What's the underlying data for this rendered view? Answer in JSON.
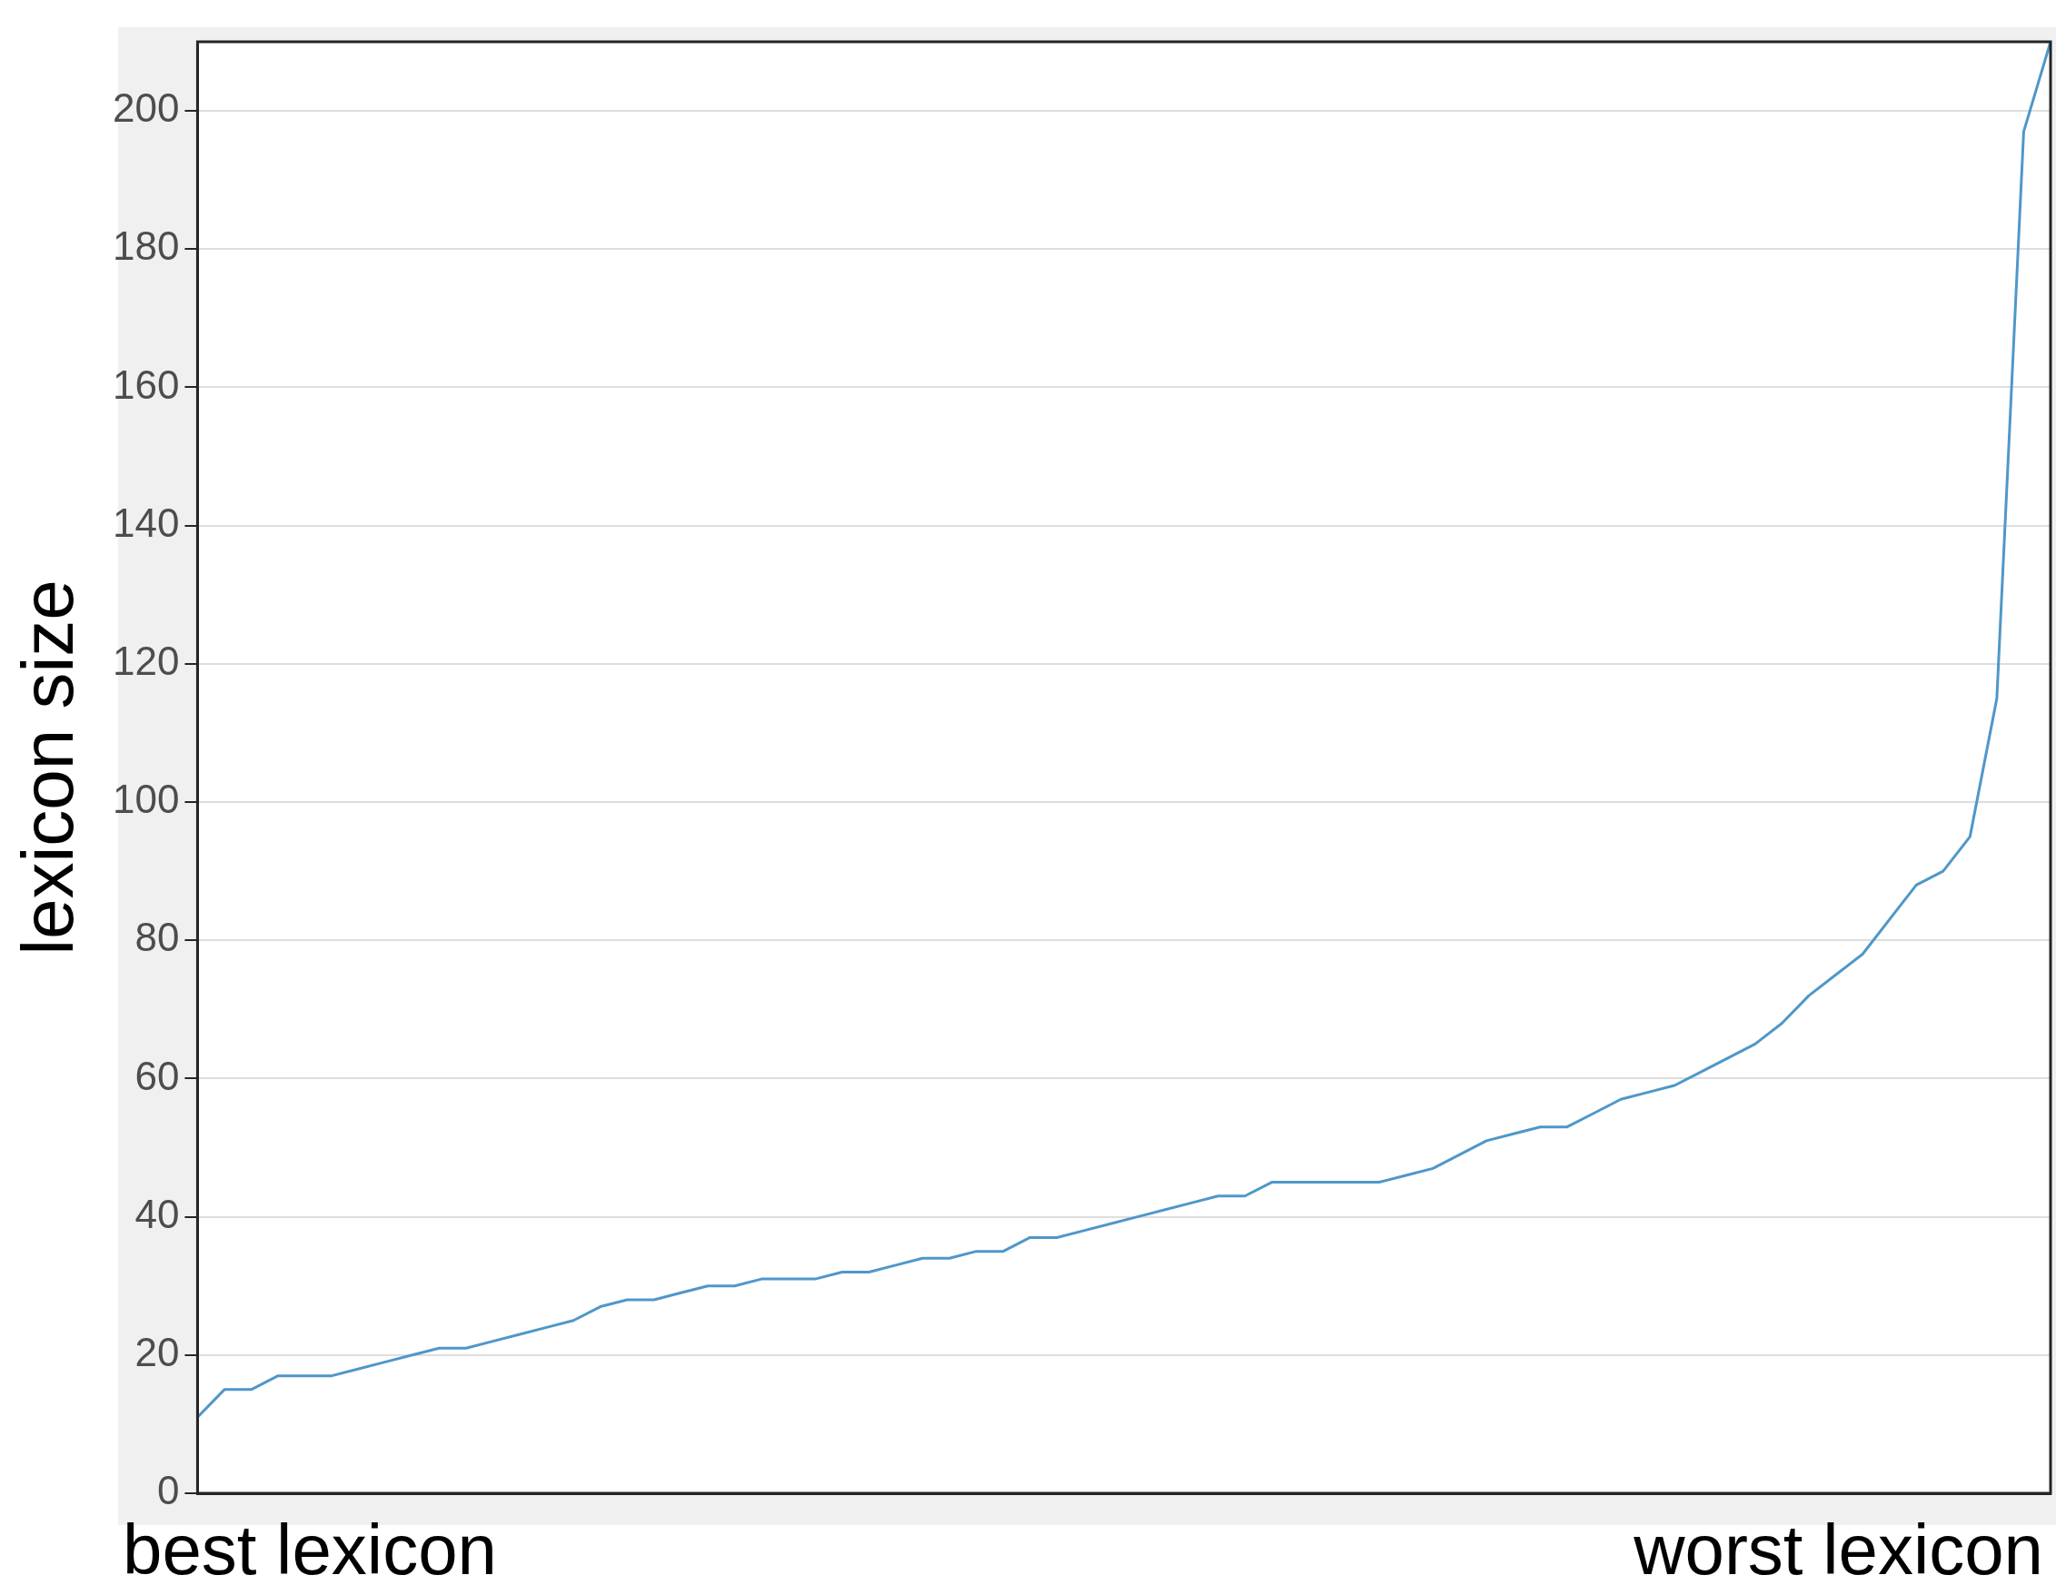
{
  "chart_data": {
    "type": "line",
    "ylabel": "lexicon size",
    "categories": [
      null,
      null,
      null,
      null,
      null,
      null,
      null,
      null,
      null,
      null,
      null,
      null,
      null,
      null,
      null,
      null,
      null,
      null,
      null,
      null,
      null,
      null,
      null,
      null,
      null,
      null,
      null,
      null,
      null,
      null,
      null,
      null,
      null,
      null,
      null,
      null,
      null,
      null,
      null,
      null,
      null,
      null,
      null,
      null,
      null,
      null,
      null,
      null,
      null,
      null,
      null,
      null,
      null,
      null,
      null,
      null,
      null,
      null,
      null,
      null,
      null,
      null,
      null,
      null,
      null,
      null,
      null,
      null,
      null,
      null
    ],
    "series": [
      {
        "color": "#4f97c9",
        "values": [
          11,
          15,
          15,
          17,
          17,
          17,
          18,
          19,
          20,
          21,
          21,
          22,
          23,
          24,
          25,
          27,
          28,
          28,
          29,
          30,
          30,
          31,
          31,
          31,
          32,
          32,
          33,
          34,
          34,
          35,
          35,
          37,
          37,
          38,
          39,
          40,
          41,
          42,
          43,
          43,
          45,
          45,
          45,
          45,
          45,
          46,
          47,
          49,
          51,
          52,
          53,
          53,
          55,
          57,
          58,
          59,
          61,
          63,
          65,
          68,
          72,
          75,
          78,
          83,
          88,
          90,
          95,
          115,
          197,
          210
        ]
      }
    ],
    "ylim": [
      0,
      210
    ],
    "yticks": [
      0,
      20,
      40,
      60,
      80,
      100,
      120,
      140,
      160,
      180,
      200
    ],
    "grid": "y",
    "tick_labels": "y",
    "marker": "none",
    "line_style": "solid",
    "annotations": [
      "best lexicon",
      "worst lexicon"
    ]
  }
}
